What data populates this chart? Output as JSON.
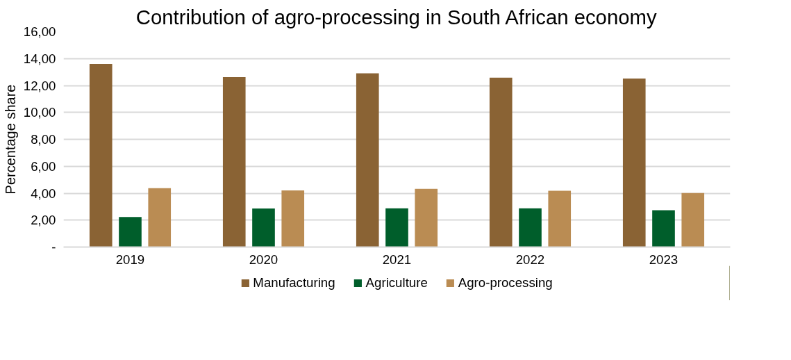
{
  "chart_data": {
    "type": "bar",
    "title": "Contribution of agro-processing in South African economy",
    "ylabel": "Percentage share",
    "categories": [
      "2019",
      "2020",
      "2021",
      "2022",
      "2023"
    ],
    "series": [
      {
        "name": "Manufacturing",
        "color": "#8a6334",
        "values": [
          13.6,
          12.62,
          12.9,
          12.58,
          12.52
        ]
      },
      {
        "name": "Agriculture",
        "color": "#005e2b",
        "values": [
          2.23,
          2.86,
          2.88,
          2.88,
          2.73
        ]
      },
      {
        "name": "Agro-processing",
        "color": "#ba8c53",
        "values": [
          4.38,
          4.21,
          4.32,
          4.18,
          4.01
        ]
      }
    ],
    "ylim": [
      0,
      16
    ],
    "yticks": [
      {
        "value": 0,
        "label": "-"
      },
      {
        "value": 2,
        "label": "2,00"
      },
      {
        "value": 4,
        "label": "4,00"
      },
      {
        "value": 6,
        "label": "6,00"
      },
      {
        "value": 8,
        "label": "8,00"
      },
      {
        "value": 10,
        "label": "10,00"
      },
      {
        "value": 12,
        "label": "12,00"
      },
      {
        "value": 14,
        "label": "14,00"
      },
      {
        "value": 16,
        "label": "16,00"
      }
    ],
    "grid": "y",
    "legend": "bottom"
  }
}
